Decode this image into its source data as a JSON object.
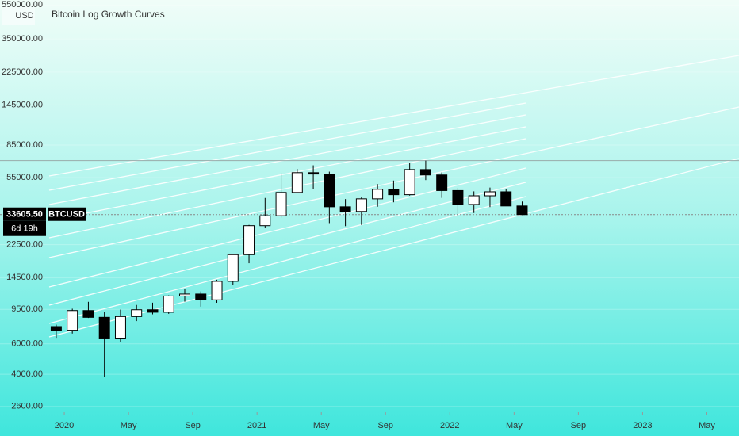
{
  "chart_data": {
    "type": "candlestick",
    "title": "Bitcoin Log Growth Curves",
    "currency": "USD",
    "symbol": "BTCUSD",
    "countdown": "6d 19h",
    "last_label": "33605.50",
    "log_scale": true,
    "grid": true,
    "up_color": "#ffffff",
    "down_color": "#000000",
    "x": [
      "2019-12",
      "2020-01",
      "2020-02",
      "2020-03",
      "2020-04",
      "2020-05",
      "2020-06",
      "2020-07",
      "2020-08",
      "2020-09",
      "2020-10",
      "2020-11",
      "2020-12",
      "2021-01",
      "2021-02",
      "2021-03",
      "2021-04",
      "2021-05",
      "2021-06",
      "2021-07",
      "2021-08",
      "2021-09",
      "2021-10",
      "2021-11",
      "2021-12",
      "2022-01",
      "2022-02",
      "2022-03",
      "2022-04",
      "2022-05"
    ],
    "open": [
      7550,
      7190,
      9350,
      8540,
      6410,
      8630,
      9450,
      9140,
      11350,
      11650,
      10780,
      13800,
      19700,
      28990,
      33110,
      45140,
      58790,
      57700,
      37300,
      35040,
      41460,
      47100,
      43820,
      61300,
      57000,
      46300,
      38480,
      43190,
      45540,
      37710
    ],
    "high": [
      7750,
      9580,
      10500,
      9180,
      9470,
      10070,
      10380,
      11450,
      12470,
      12070,
      14100,
      19880,
      29300,
      41950,
      58350,
      61780,
      64850,
      59590,
      41330,
      42450,
      50500,
      52920,
      67000,
      69000,
      59050,
      47990,
      45820,
      48190,
      47440,
      40000
    ],
    "low": [
      6430,
      6880,
      8470,
      3850,
      6150,
      8120,
      8890,
      8950,
      10520,
      9850,
      10370,
      13220,
      17570,
      28130,
      32300,
      44950,
      47050,
      30000,
      28800,
      29280,
      37330,
      39600,
      43280,
      53250,
      42000,
      32950,
      34320,
      37160,
      37700,
      33400
    ],
    "close": [
      7190,
      9350,
      8540,
      6410,
      8630,
      9450,
      9140,
      11350,
      11650,
      10780,
      13800,
      19700,
      28990,
      33110,
      45140,
      58790,
      57700,
      37300,
      35040,
      41460,
      47100,
      43820,
      61300,
      57000,
      46300,
      38480,
      43190,
      45540,
      37710,
      33605.5
    ],
    "xlim": [
      "2019-09",
      "2023-07"
    ],
    "xticks": [
      {
        "value": "2020-01",
        "label": "2020"
      },
      {
        "value": "2020-05",
        "label": "May"
      },
      {
        "value": "2020-09",
        "label": "Sep"
      },
      {
        "value": "2021-01",
        "label": "2021"
      },
      {
        "value": "2021-05",
        "label": "May"
      },
      {
        "value": "2021-09",
        "label": "Sep"
      },
      {
        "value": "2022-01",
        "label": "2022"
      },
      {
        "value": "2022-05",
        "label": "May"
      },
      {
        "value": "2022-09",
        "label": "Sep"
      },
      {
        "value": "2023-01",
        "label": "2023"
      },
      {
        "value": "2023-05",
        "label": "May"
      }
    ],
    "ylim": [
      2410,
      588000
    ],
    "yticks": [
      {
        "value": 550000,
        "label": "550000.00"
      },
      {
        "value": 350000,
        "label": "350000.00"
      },
      {
        "value": 225000,
        "label": "225000.00"
      },
      {
        "value": 145000,
        "label": "145000.00"
      },
      {
        "value": 85000,
        "label": "85000.00"
      },
      {
        "value": 55000,
        "label": "55000.00"
      },
      {
        "value": 22500,
        "label": "22500.00"
      },
      {
        "value": 14500,
        "label": "14500.00"
      },
      {
        "value": 9500,
        "label": "9500.00"
      },
      {
        "value": 6000,
        "label": "6000.00"
      },
      {
        "value": 4000,
        "label": "4000.00"
      },
      {
        "value": 2600,
        "label": "2600.00"
      }
    ]
  }
}
